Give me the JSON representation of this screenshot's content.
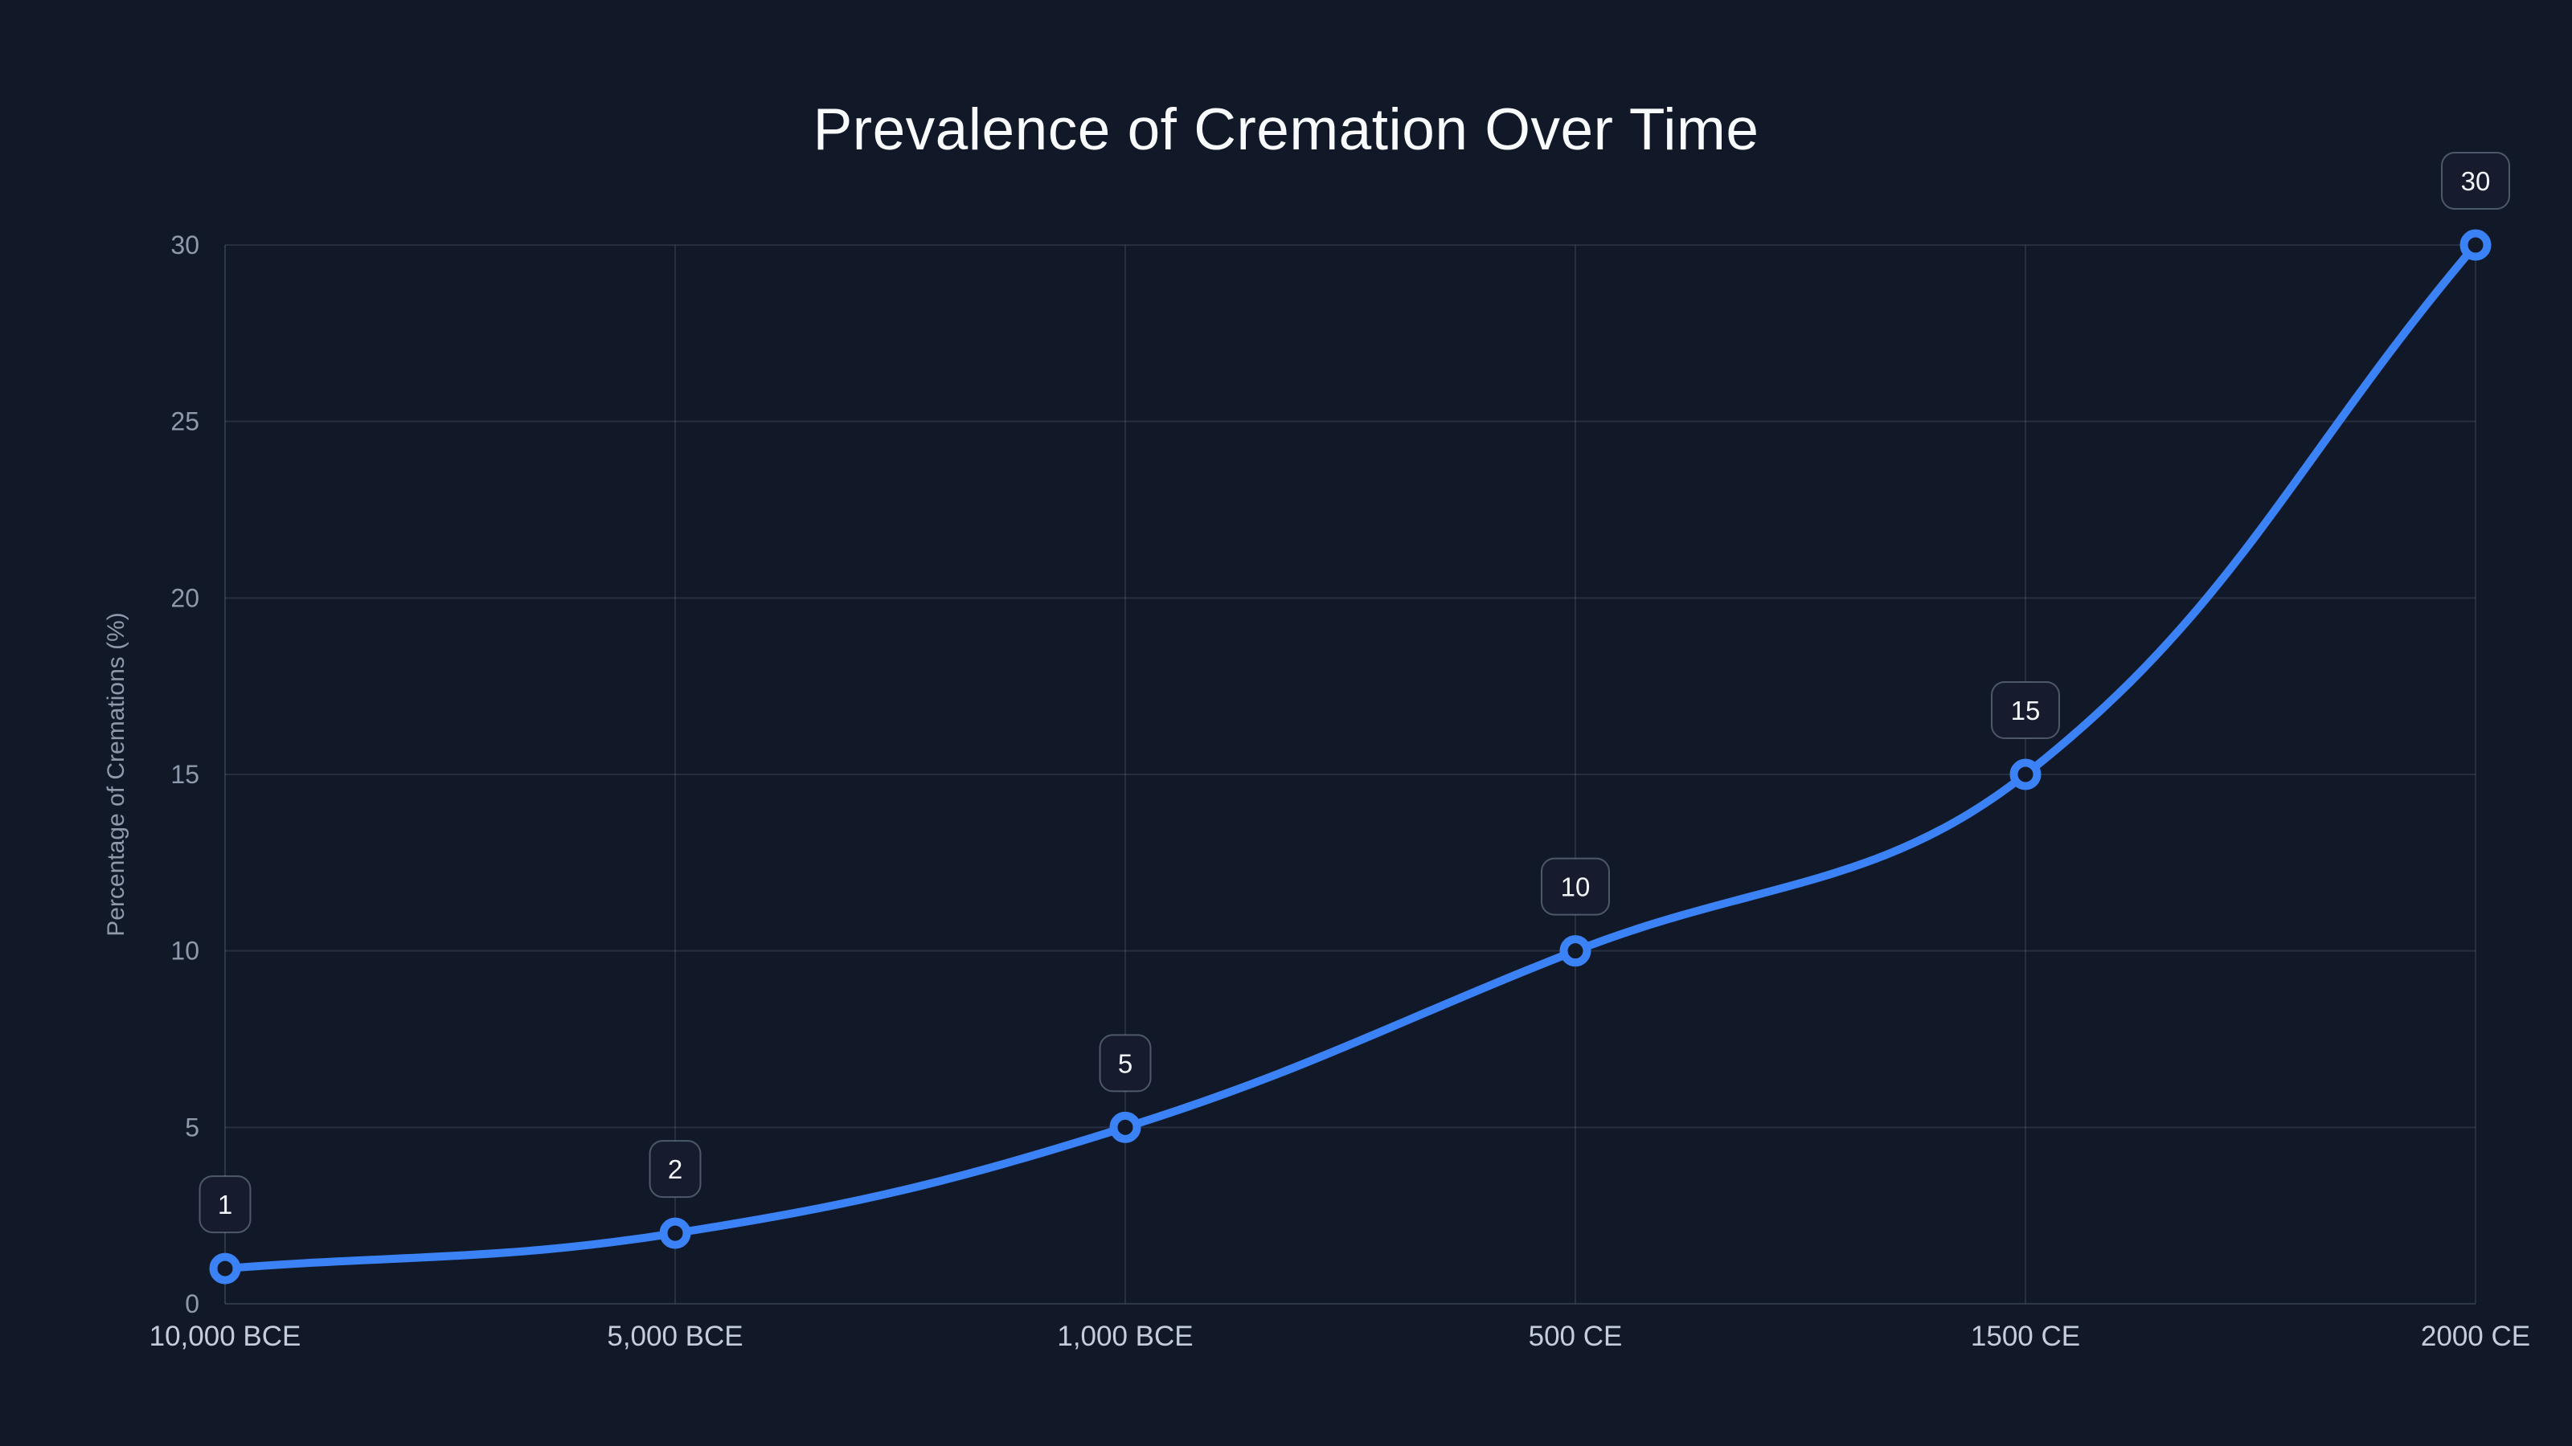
{
  "chart_data": {
    "type": "line",
    "title": "Prevalence of Cremation Over Time",
    "xlabel": "",
    "ylabel": "Percentage of Cremations (%)",
    "categories": [
      "10,000 BCE",
      "5,000 BCE",
      "1,000 BCE",
      "500 CE",
      "1500 CE",
      "2000 CE"
    ],
    "series": [
      {
        "name": "Percentage of Cremations",
        "values": [
          1,
          2,
          5,
          10,
          15,
          30
        ]
      }
    ],
    "point_labels": [
      "1",
      "2",
      "5",
      "10",
      "15",
      "30"
    ],
    "ylim": [
      0,
      30
    ],
    "yticks": [
      0,
      5,
      10,
      15,
      20,
      25,
      30
    ],
    "grid": true,
    "legend": false,
    "line_smoothing": 0.4,
    "colors": {
      "background": "#111929",
      "line": "#3b82f6",
      "marker_ring": "#3b82f6",
      "marker_fill": "#111929",
      "grid": "rgba(148,163,184,0.16)",
      "axis_line": "rgba(148,163,184,0.22)",
      "title_text": "#f8fafc",
      "x_tick_text": "#c5cdda",
      "y_tick_text": "#8e99ac",
      "axis_title_text": "#8e99ac",
      "badge_fill": "#161c2e",
      "badge_border": "rgba(148,163,184,0.45)",
      "badge_text": "#f1f5f9"
    }
  }
}
